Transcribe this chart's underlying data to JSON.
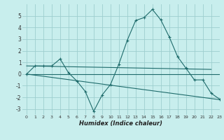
{
  "title": "",
  "xlabel": "Humidex (Indice chaleur)",
  "background_color": "#c8eeed",
  "grid_color": "#9ecece",
  "line_color": "#1e6b6b",
  "xlim": [
    -0.5,
    23
  ],
  "ylim": [
    -3.5,
    6.0
  ],
  "xticks": [
    0,
    1,
    2,
    3,
    4,
    5,
    6,
    7,
    8,
    9,
    10,
    11,
    12,
    13,
    14,
    15,
    16,
    17,
    18,
    19,
    20,
    21,
    22,
    23
  ],
  "yticks": [
    -3,
    -2,
    -1,
    0,
    1,
    2,
    3,
    4,
    5
  ],
  "main_x": [
    0,
    1,
    2,
    3,
    4,
    5,
    6,
    7,
    8,
    9,
    10,
    11,
    12,
    13,
    14,
    15,
    16,
    17,
    18,
    19,
    20,
    21,
    22,
    23
  ],
  "main_y": [
    0,
    0.7,
    0.7,
    0.7,
    1.3,
    0.1,
    -0.6,
    -1.5,
    -3.2,
    -1.8,
    -0.9,
    0.85,
    2.9,
    4.6,
    4.85,
    5.55,
    4.65,
    3.2,
    1.5,
    0.5,
    -0.5,
    -0.5,
    -1.65,
    -2.15
  ],
  "line1_x": [
    0,
    22
  ],
  "line1_y": [
    0.7,
    0.4
  ],
  "line2_x": [
    0,
    23
  ],
  "line2_y": [
    0.0,
    0.0
  ],
  "line3_x": [
    0,
    23
  ],
  "line3_y": [
    0.0,
    -2.2
  ]
}
